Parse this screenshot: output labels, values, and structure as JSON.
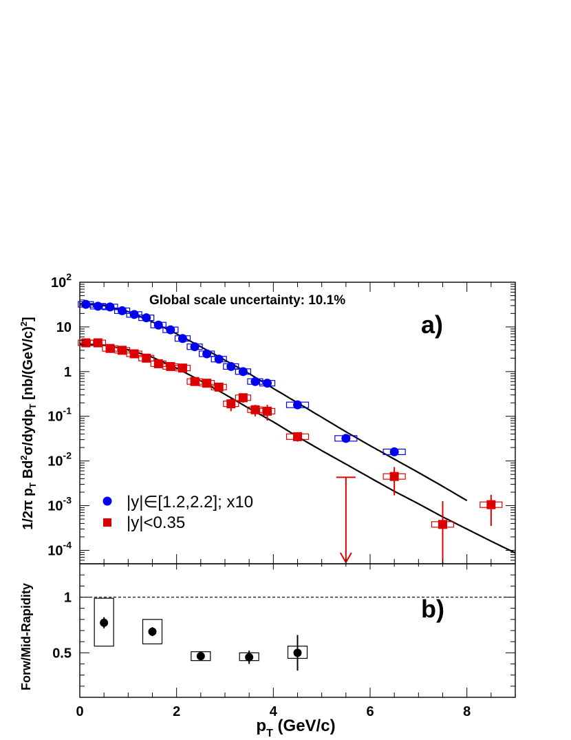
{
  "chart_data": [
    {
      "type": "scatter",
      "panel": "a)",
      "annotation": "Global scale uncertainty: 10.1%",
      "xlabel": "p_T (GeV/c)",
      "ylabel": "1/2π p_T Bd²σ/dydp_T [nb/(GeV/c)²]",
      "xlim": [
        0,
        9
      ],
      "ylim": [
        5e-05,
        100
      ],
      "yscale": "log",
      "x_ticks": [
        "0",
        "2",
        "4",
        "6",
        "8"
      ],
      "y_ticks": [
        {
          "base": "10",
          "exp": "2"
        },
        {
          "base": "10",
          "exp": ""
        },
        {
          "base": "1",
          "exp": ""
        },
        {
          "base": "10",
          "exp": "-1"
        },
        {
          "base": "10",
          "exp": "-2"
        },
        {
          "base": "10",
          "exp": "-3"
        },
        {
          "base": "10",
          "exp": "-4"
        }
      ],
      "legend": [
        {
          "label": "|y|∈[1.2,2.2]; x10",
          "color": "#0000ee",
          "marker": "circle"
        },
        {
          "label": "|y|<0.35",
          "color": "#dd0000",
          "marker": "square"
        }
      ],
      "series": [
        {
          "name": "|y|∈[1.2,2.2]; x10",
          "color": "#0000ee",
          "marker": "circle",
          "x": [
            0.125,
            0.375,
            0.625,
            0.875,
            1.125,
            1.375,
            1.625,
            1.875,
            2.125,
            2.375,
            2.625,
            2.875,
            3.125,
            3.375,
            3.625,
            3.875,
            4.5,
            5.5,
            6.5
          ],
          "y": [
            32,
            29,
            28,
            23,
            19,
            16,
            11,
            8.6,
            5.5,
            3.6,
            2.5,
            1.9,
            1.3,
            1.0,
            0.6,
            0.55,
            0.18,
            0.032,
            0.016
          ],
          "err_lo": [
            2,
            2,
            2,
            2,
            1,
            1,
            1,
            0.6,
            0.4,
            0.3,
            0.2,
            0.2,
            0.1,
            0.1,
            0.05,
            0.05,
            0.02,
            0.004,
            0.002
          ],
          "err_hi": [
            2,
            2,
            2,
            2,
            1,
            1,
            1,
            0.6,
            0.4,
            0.3,
            0.2,
            0.2,
            0.1,
            0.1,
            0.05,
            0.05,
            0.02,
            0.004,
            0.002
          ]
        },
        {
          "name": "|y|<0.35",
          "color": "#dd0000",
          "marker": "square",
          "x": [
            0.125,
            0.375,
            0.625,
            0.875,
            1.125,
            1.375,
            1.625,
            1.875,
            2.125,
            2.375,
            2.625,
            2.875,
            3.125,
            3.375,
            3.625,
            3.875,
            4.5,
            6.5,
            7.5,
            8.5
          ],
          "y": [
            4.4,
            4.4,
            3.3,
            3.0,
            2.5,
            2.0,
            1.5,
            1.3,
            1.2,
            0.6,
            0.55,
            0.45,
            0.19,
            0.26,
            0.14,
            0.13,
            0.035,
            0.0045,
            0.00038,
            0.00105
          ],
          "err_lo": [
            0.3,
            0.3,
            0.3,
            0.3,
            0.25,
            0.2,
            0.2,
            0.15,
            0.15,
            0.1,
            0.1,
            0.08,
            0.06,
            0.06,
            0.04,
            0.05,
            0.008,
            0.0028,
            0.00034,
            0.0007
          ],
          "err_hi": [
            0.3,
            0.3,
            0.3,
            0.3,
            0.25,
            0.2,
            0.2,
            0.15,
            0.15,
            0.1,
            0.1,
            0.08,
            0.06,
            0.06,
            0.04,
            0.05,
            0.008,
            0.0028,
            0.00088,
            0.0007
          ]
        }
      ],
      "upper_limits": [
        {
          "series": "|y|<0.35",
          "x": 5.5,
          "y": 0.0043
        }
      ],
      "fit_curves": [
        {
          "name": "fit |y|∈[1.2,2.2]; x10",
          "x": [
            0,
            0.5,
            1,
            1.5,
            2,
            2.5,
            3,
            3.5,
            4,
            4.5,
            5,
            5.5,
            6,
            6.5,
            7,
            7.5,
            8
          ],
          "y": [
            33,
            30,
            22,
            13,
            7,
            3.6,
            1.8,
            0.9,
            0.42,
            0.2,
            0.095,
            0.045,
            0.022,
            0.011,
            0.0055,
            0.0027,
            0.0013
          ]
        },
        {
          "name": "fit |y|<0.35",
          "x": [
            0,
            0.5,
            1,
            1.5,
            2,
            2.5,
            3,
            3.5,
            4,
            4.5,
            5,
            5.5,
            6,
            6.5,
            7,
            7.5,
            8,
            8.5,
            9
          ],
          "y": [
            4.2,
            3.9,
            3.1,
            2.1,
            1.2,
            0.62,
            0.31,
            0.15,
            0.075,
            0.035,
            0.017,
            0.0085,
            0.0042,
            0.0021,
            0.0011,
            0.00056,
            0.0003,
            0.00016,
            8.75e-05
          ]
        }
      ]
    },
    {
      "type": "scatter",
      "panel": "b)",
      "xlabel": "p_T (GeV/c)",
      "ylabel": "Forw/Mid-Rapidity",
      "xlim": [
        0,
        9
      ],
      "ylim": [
        0.1,
        1.3
      ],
      "x_ticks": [
        "0",
        "2",
        "4",
        "6",
        "8"
      ],
      "y_ticks": [
        "0.5",
        "1"
      ],
      "reference_line": 1,
      "series": [
        {
          "name": "ratio",
          "color": "#000000",
          "marker": "circle",
          "x": [
            0.5,
            1.5,
            2.5,
            3.5,
            4.5
          ],
          "y": [
            0.77,
            0.69,
            0.47,
            0.46,
            0.5
          ],
          "err_lo": [
            0.05,
            0.04,
            0.03,
            0.06,
            0.16
          ],
          "err_hi": [
            0.05,
            0.04,
            0.03,
            0.06,
            0.16
          ],
          "sys_lo": [
            0.56,
            0.58,
            0.43,
            0.43,
            0.45
          ],
          "sys_hi": [
            0.99,
            0.8,
            0.51,
            0.5,
            0.56
          ]
        }
      ]
    }
  ]
}
